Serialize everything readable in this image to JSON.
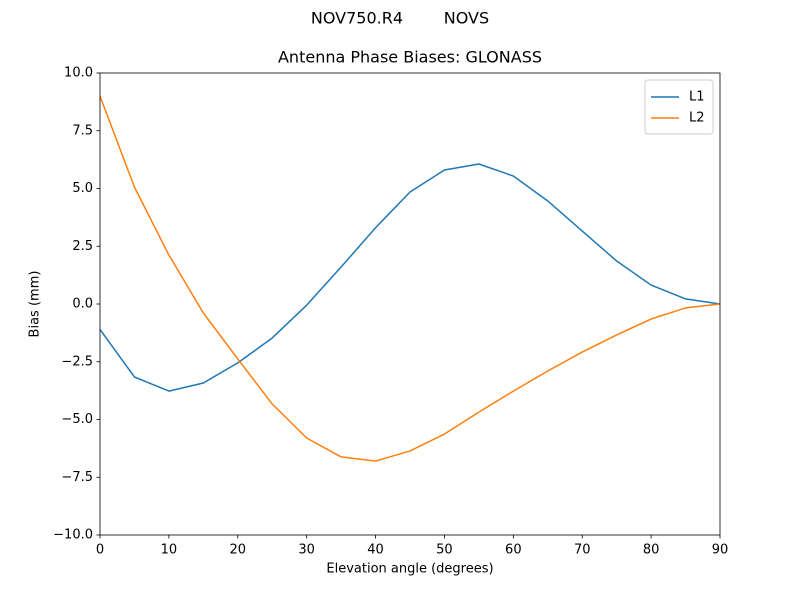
{
  "chart_data": {
    "type": "line",
    "suptitle": "NOV750.R4        NOVS",
    "title": "Antenna Phase Biases: GLONASS",
    "xlabel": "Elevation angle (degrees)",
    "ylabel": "Bias (mm)",
    "x": [
      0,
      5,
      10,
      15,
      20,
      25,
      30,
      35,
      40,
      45,
      50,
      55,
      60,
      65,
      70,
      75,
      80,
      85,
      90
    ],
    "series": [
      {
        "name": "L1",
        "color": "#1f77b4",
        "values": [
          -1.1,
          -3.16,
          -3.77,
          -3.42,
          -2.55,
          -1.47,
          -0.05,
          1.6,
          3.3,
          4.85,
          5.8,
          6.06,
          5.54,
          4.46,
          3.16,
          1.86,
          0.82,
          0.22,
          0.0
        ]
      },
      {
        "name": "L2",
        "color": "#ff7f0e",
        "values": [
          9.0,
          5.06,
          2.12,
          -0.39,
          -2.38,
          -4.33,
          -5.8,
          -6.62,
          -6.8,
          -6.36,
          -5.63,
          -4.68,
          -3.77,
          -2.9,
          -2.08,
          -1.34,
          -0.65,
          -0.17,
          0.0
        ]
      }
    ],
    "xlim": [
      0,
      90
    ],
    "xticks": [
      0,
      10,
      20,
      30,
      40,
      50,
      60,
      70,
      80,
      90
    ],
    "ylim": [
      -10,
      10
    ],
    "yticks": [
      {
        "value": -10,
        "label": "−10.0"
      },
      {
        "value": -7.5,
        "label": "−7.5"
      },
      {
        "value": -5,
        "label": "−5.0"
      },
      {
        "value": -2.5,
        "label": "−2.5"
      },
      {
        "value": 0,
        "label": "0.0"
      },
      {
        "value": 2.5,
        "label": "2.5"
      },
      {
        "value": 5,
        "label": "5.0"
      },
      {
        "value": 7.5,
        "label": "7.5"
      },
      {
        "value": 10,
        "label": "10.0"
      }
    ],
    "grid": false,
    "legend": "upper right"
  }
}
